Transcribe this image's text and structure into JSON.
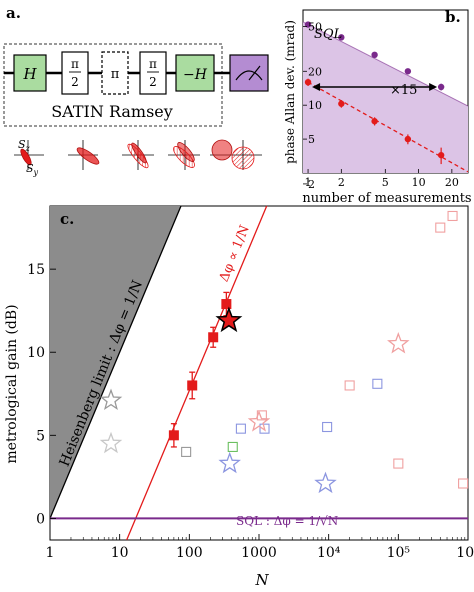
{
  "panel_a": {
    "label": "a.",
    "gates": [
      "H",
      "π/2",
      "π",
      "π/2",
      "−H"
    ],
    "caption": "SATIN Ramsey",
    "axis_z": "S_z",
    "axis_y": "S_y"
  },
  "panel_b": {
    "label": "b.",
    "ylabel": "phase Allan dev. (mrad)",
    "xlabel": "number of measurements",
    "sql_label": "SQL",
    "gain_label": "×15",
    "xticks": [
      "1",
      "2",
      "5",
      "10",
      "20"
    ],
    "yticks": [
      "2",
      "5",
      "10",
      "20",
      "50"
    ]
  },
  "panel_c": {
    "label": "c.",
    "ylabel": "metrological gain (dB)",
    "xlabel": "N",
    "heisenberg_label": "Heisenberg limit : Δφ = 1/N",
    "scaling_label": "Δφ ∝ 1/N",
    "sql_label": "SQL : Δφ = 1/√N",
    "xticks": [
      "1",
      "10",
      "100",
      "1000",
      "10⁴",
      "10⁵",
      "10⁶"
    ],
    "yticks": [
      "0",
      "5",
      "10",
      "15"
    ]
  },
  "colors": {
    "purple": "#7a2a8c",
    "purple_fill": "#dcc4e6",
    "red": "#e31b1b",
    "grey_fill": "#8c8c8c",
    "gate_green": "#aadca0",
    "gate_purple": "#b48cd2"
  },
  "chart_data": [
    {
      "type": "scatter",
      "panel": "b",
      "xlabel": "number of measurements",
      "ylabel": "phase Allan dev. (mrad)",
      "xscale": "log",
      "yscale": "log",
      "xlim": [
        0.9,
        28
      ],
      "ylim": [
        2.5,
        70
      ],
      "series": [
        {
          "name": "SQL",
          "color": "#7a2a8c",
          "x": [
            1,
            2,
            4,
            8,
            16
          ],
          "y": [
            52,
            40,
            28,
            20,
            14.5
          ],
          "yerr": [
            2,
            2,
            1.5,
            1,
            1
          ]
        },
        {
          "color": "#e31b1b",
          "x": [
            1,
            2,
            4,
            8,
            16
          ],
          "y": [
            16,
            10.3,
            7.2,
            5,
            3.6
          ],
          "yerr": [
            1.2,
            0.8,
            0.6,
            0.5,
            0.6
          ]
        }
      ]
    },
    {
      "type": "scatter",
      "panel": "c",
      "xlabel": "N",
      "ylabel": "metrological gain (dB)",
      "xscale": "log",
      "xlim": [
        1,
        1000000
      ],
      "ylim": [
        -1.3,
        18.8
      ],
      "series": [
        {
          "color": "#e31b1b",
          "marker": "filled-square",
          "x": [
            60,
            110,
            220,
            340
          ],
          "y": [
            5.0,
            8.0,
            10.9,
            12.9
          ],
          "yerr": [
            0.7,
            0.8,
            0.6,
            0.7
          ]
        },
        {
          "marker": "black-star",
          "x": [
            370
          ],
          "y": [
            11.9
          ]
        },
        {
          "marker": "open-square",
          "points": [
            {
              "x": 90,
              "y": 4.0,
              "color": "#999999"
            },
            {
              "x": 420,
              "y": 4.3,
              "color": "#6cc060"
            },
            {
              "x": 550,
              "y": 5.4,
              "color": "#8c96e0"
            },
            {
              "x": 1200,
              "y": 5.4,
              "color": "#8c96e0"
            },
            {
              "x": 1100,
              "y": 6.2,
              "color": "#f0a0a0"
            },
            {
              "x": 9500,
              "y": 5.5,
              "color": "#8c96e0"
            },
            {
              "x": 20000,
              "y": 8.0,
              "color": "#f0a0a0"
            },
            {
              "x": 50000,
              "y": 8.1,
              "color": "#8c96e0"
            },
            {
              "x": 100000,
              "y": 3.3,
              "color": "#f0a0a0"
            },
            {
              "x": 400000,
              "y": 17.5,
              "color": "#f0a0a0"
            },
            {
              "x": 600000,
              "y": 18.2,
              "color": "#f0a0a0"
            },
            {
              "x": 850000,
              "y": 2.1,
              "color": "#f0a0a0"
            }
          ]
        },
        {
          "marker": "open-star",
          "points": [
            {
              "x": 7.5,
              "y": 7.1,
              "color": "#999999"
            },
            {
              "x": 7.5,
              "y": 4.5,
              "color": "#c8c8c8"
            },
            {
              "x": 380,
              "y": 3.3,
              "color": "#8c96e0"
            },
            {
              "x": 1000,
              "y": 5.8,
              "color": "#f0a0a0"
            },
            {
              "x": 9000,
              "y": 2.1,
              "color": "#8c96e0"
            },
            {
              "x": 100000,
              "y": 10.5,
              "color": "#f0a0a0"
            }
          ]
        }
      ],
      "lines": [
        {
          "name": "Heisenberg limit : Δφ = 1/N"
        },
        {
          "name": "Δφ ∝ 1/N"
        },
        {
          "name": "SQL : Δφ = 1/√N"
        }
      ]
    }
  ]
}
